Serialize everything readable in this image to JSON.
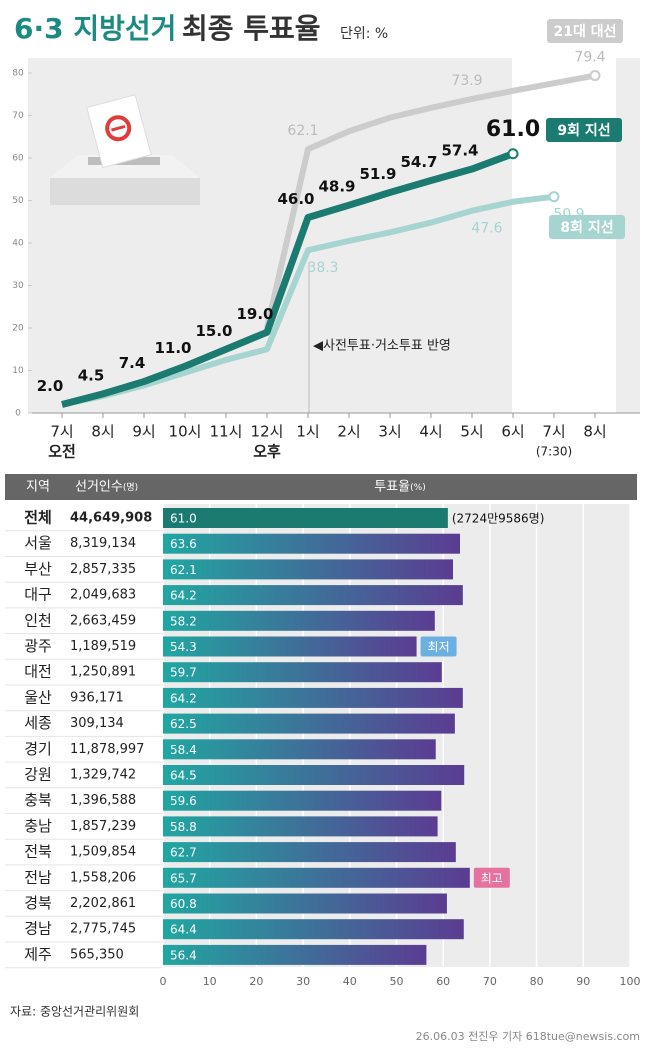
{
  "chart_data": [
    {
      "type": "line",
      "title": "6·3 지방선거",
      "subtitle": "최종 투표율",
      "unit": "단위: %",
      "annotation": "◀사전투표·거소투표 반영",
      "categories": [
        "7시",
        "8시",
        "9시",
        "10시",
        "11시",
        "12시",
        "1시",
        "2시",
        "3시",
        "4시",
        "5시",
        "6시",
        "7시",
        "8시"
      ],
      "x_sublabels": [
        "오전",
        null,
        null,
        null,
        null,
        "오후",
        null,
        null,
        null,
        null,
        null,
        null,
        "(7:30)",
        null
      ],
      "ylim": [
        0,
        80
      ],
      "yticks": [
        0,
        10,
        20,
        30,
        40,
        50,
        60,
        70,
        80
      ],
      "series": [
        {
          "name": "21대 대선",
          "color": "#cccccc",
          "values": [
            null,
            null,
            null,
            null,
            null,
            20.0,
            62.1,
            66.3,
            69.5,
            71.8,
            73.9,
            75.8,
            77.6,
            79.4
          ],
          "value_labels": [
            null,
            null,
            null,
            null,
            null,
            null,
            "62.1",
            null,
            null,
            null,
            "73.9",
            null,
            null,
            "79.4"
          ]
        },
        {
          "name": "8회 지선",
          "color": "#a6d4d1",
          "values": [
            2.0,
            4.0,
            6.5,
            9.5,
            12.5,
            15.0,
            38.3,
            40.5,
            42.5,
            44.8,
            47.6,
            49.7,
            50.9,
            null
          ],
          "value_labels": [
            null,
            null,
            null,
            null,
            null,
            null,
            "38.3",
            null,
            null,
            null,
            "47.6",
            null,
            "50.9",
            null
          ]
        },
        {
          "name": "9회 지선",
          "color": "#1b7b71",
          "values": [
            2.0,
            4.5,
            7.4,
            11.0,
            15.0,
            19.0,
            46.0,
            48.9,
            51.9,
            54.7,
            57.4,
            61.0,
            null,
            null
          ],
          "value_labels": [
            "2.0",
            "4.5",
            "7.4",
            "11.0",
            "15.0",
            "19.0",
            "46.0",
            "48.9",
            "51.9",
            "54.7",
            "57.4",
            "61.0",
            null,
            null
          ]
        }
      ]
    },
    {
      "type": "hbar",
      "headers": [
        "지역",
        "선거인수",
        "(명)",
        "투표율",
        "(%)"
      ],
      "categories": [
        "전체",
        "서울",
        "부산",
        "대구",
        "인천",
        "광주",
        "대전",
        "울산",
        "세종",
        "경기",
        "강원",
        "충북",
        "충남",
        "전북",
        "전남",
        "경북",
        "경남",
        "제주"
      ],
      "electors": [
        "44,649,908",
        "8,319,134",
        "2,857,335",
        "2,049,683",
        "2,663,459",
        "1,189,519",
        "1,250,891",
        "936,171",
        "309,134",
        "11,878,997",
        "1,329,742",
        "1,396,588",
        "1,857,239",
        "1,509,854",
        "1,558,206",
        "2,202,861",
        "2,775,745",
        "565,350"
      ],
      "values": [
        61.0,
        63.6,
        62.1,
        64.2,
        58.2,
        54.3,
        59.7,
        64.2,
        62.5,
        58.4,
        64.5,
        59.6,
        58.8,
        62.7,
        65.7,
        60.8,
        64.4,
        56.4
      ],
      "value_labels": [
        "61.0",
        "63.6",
        "62.1",
        "64.2",
        "58.2",
        "54.3",
        "59.7",
        "64.2",
        "62.5",
        "58.4",
        "64.5",
        "59.6",
        "58.8",
        "62.7",
        "65.7",
        "60.8",
        "64.4",
        "56.4"
      ],
      "total_note": "(2724만9586명)",
      "low_label": "최저",
      "high_label": "최고",
      "total_color": "#1b7b71",
      "color_start": "#20a7a1",
      "color_end": "#5b3c92",
      "low_color": "#6cb0e2",
      "high_color": "#e5719f",
      "xlim": [
        0,
        100
      ],
      "xticks": [
        0,
        10,
        20,
        30,
        40,
        50,
        60,
        70,
        80,
        90,
        100
      ]
    }
  ],
  "source": "자료: 중앙선거관리위원회",
  "credit": "26.06.03 전진우 기자 618tue@newsis.com"
}
